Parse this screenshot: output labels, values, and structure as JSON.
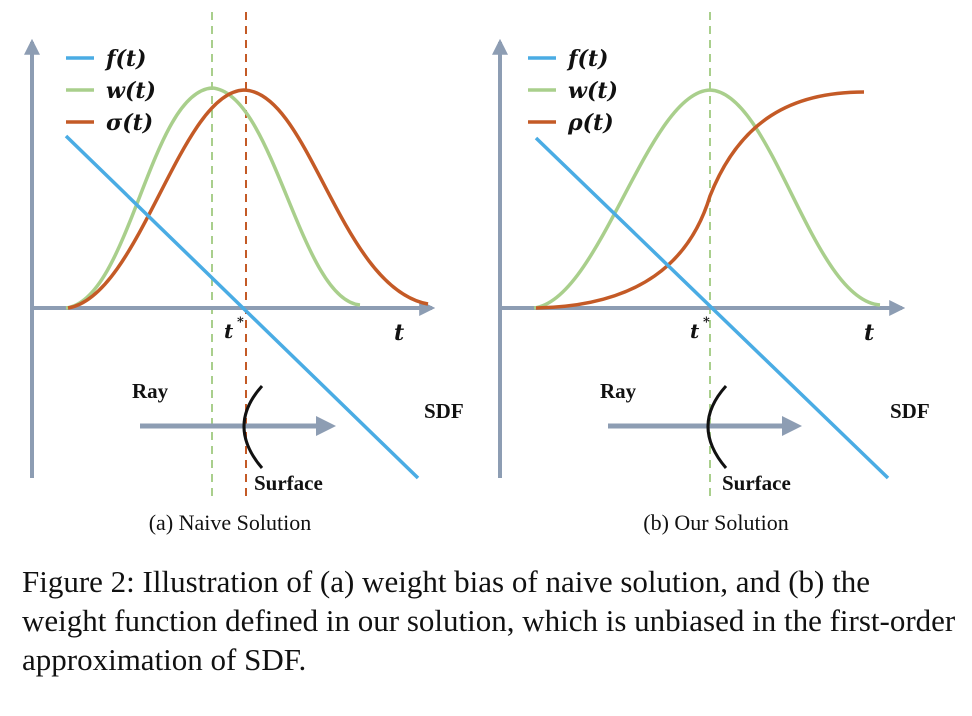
{
  "colors": {
    "axis": "#8d9db3",
    "f_color": "#4aace4",
    "w_color": "#a9cf8c",
    "red_color": "#c45a26",
    "dash_green": "#a9cf8c",
    "dash_red": "#c45a26",
    "surface": "#111111"
  },
  "panels": [
    {
      "legend": [
        "f(t)",
        "w(t)",
        "σ(t)"
      ],
      "t_label": "t",
      "tstar_label": "t",
      "tstar_sup": "*",
      "ray_label": "Ray",
      "sdf_label": "SDF",
      "surface_label": "Surface",
      "sub_caption": "(a) Naive Solution"
    },
    {
      "legend": [
        "f(t)",
        "w(t)",
        "ρ(t)"
      ],
      "t_label": "t",
      "tstar_label": "t",
      "tstar_sup": "*",
      "ray_label": "Ray",
      "sdf_label": "SDF",
      "surface_label": "Surface",
      "sub_caption": "(b) Our Solution"
    }
  ],
  "caption": {
    "text": "Figure 2: Illustration of (a) weight bias of naive solution, and (b) the weight function defined in our solution, which is unbiased in the first-order approximation of SDF."
  }
}
